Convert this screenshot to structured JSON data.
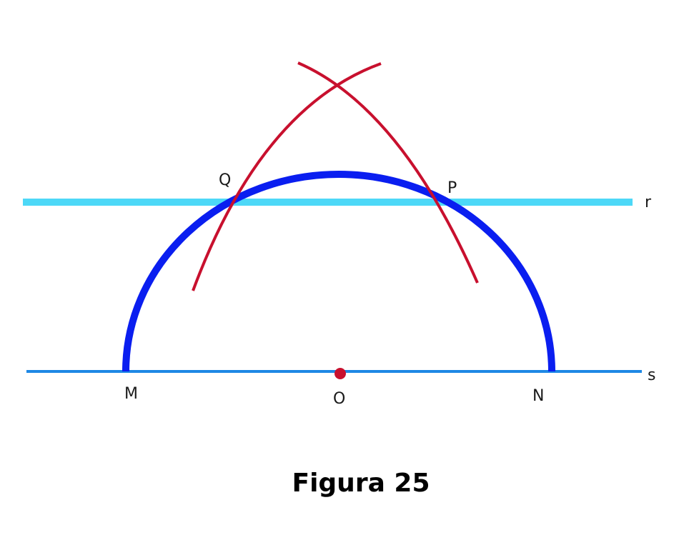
{
  "caption": "Figura 25",
  "lines": {
    "r": {
      "label": "r",
      "color": "#4dd8f7"
    },
    "s": {
      "label": "s",
      "color": "#1e88e5"
    }
  },
  "points": {
    "M": "M",
    "N": "N",
    "O": "O",
    "P": "P",
    "Q": "Q"
  },
  "colors": {
    "semicircle": "#0a1ef0",
    "construction_arcs": "#c8102e",
    "center_point": "#c8102e"
  }
}
